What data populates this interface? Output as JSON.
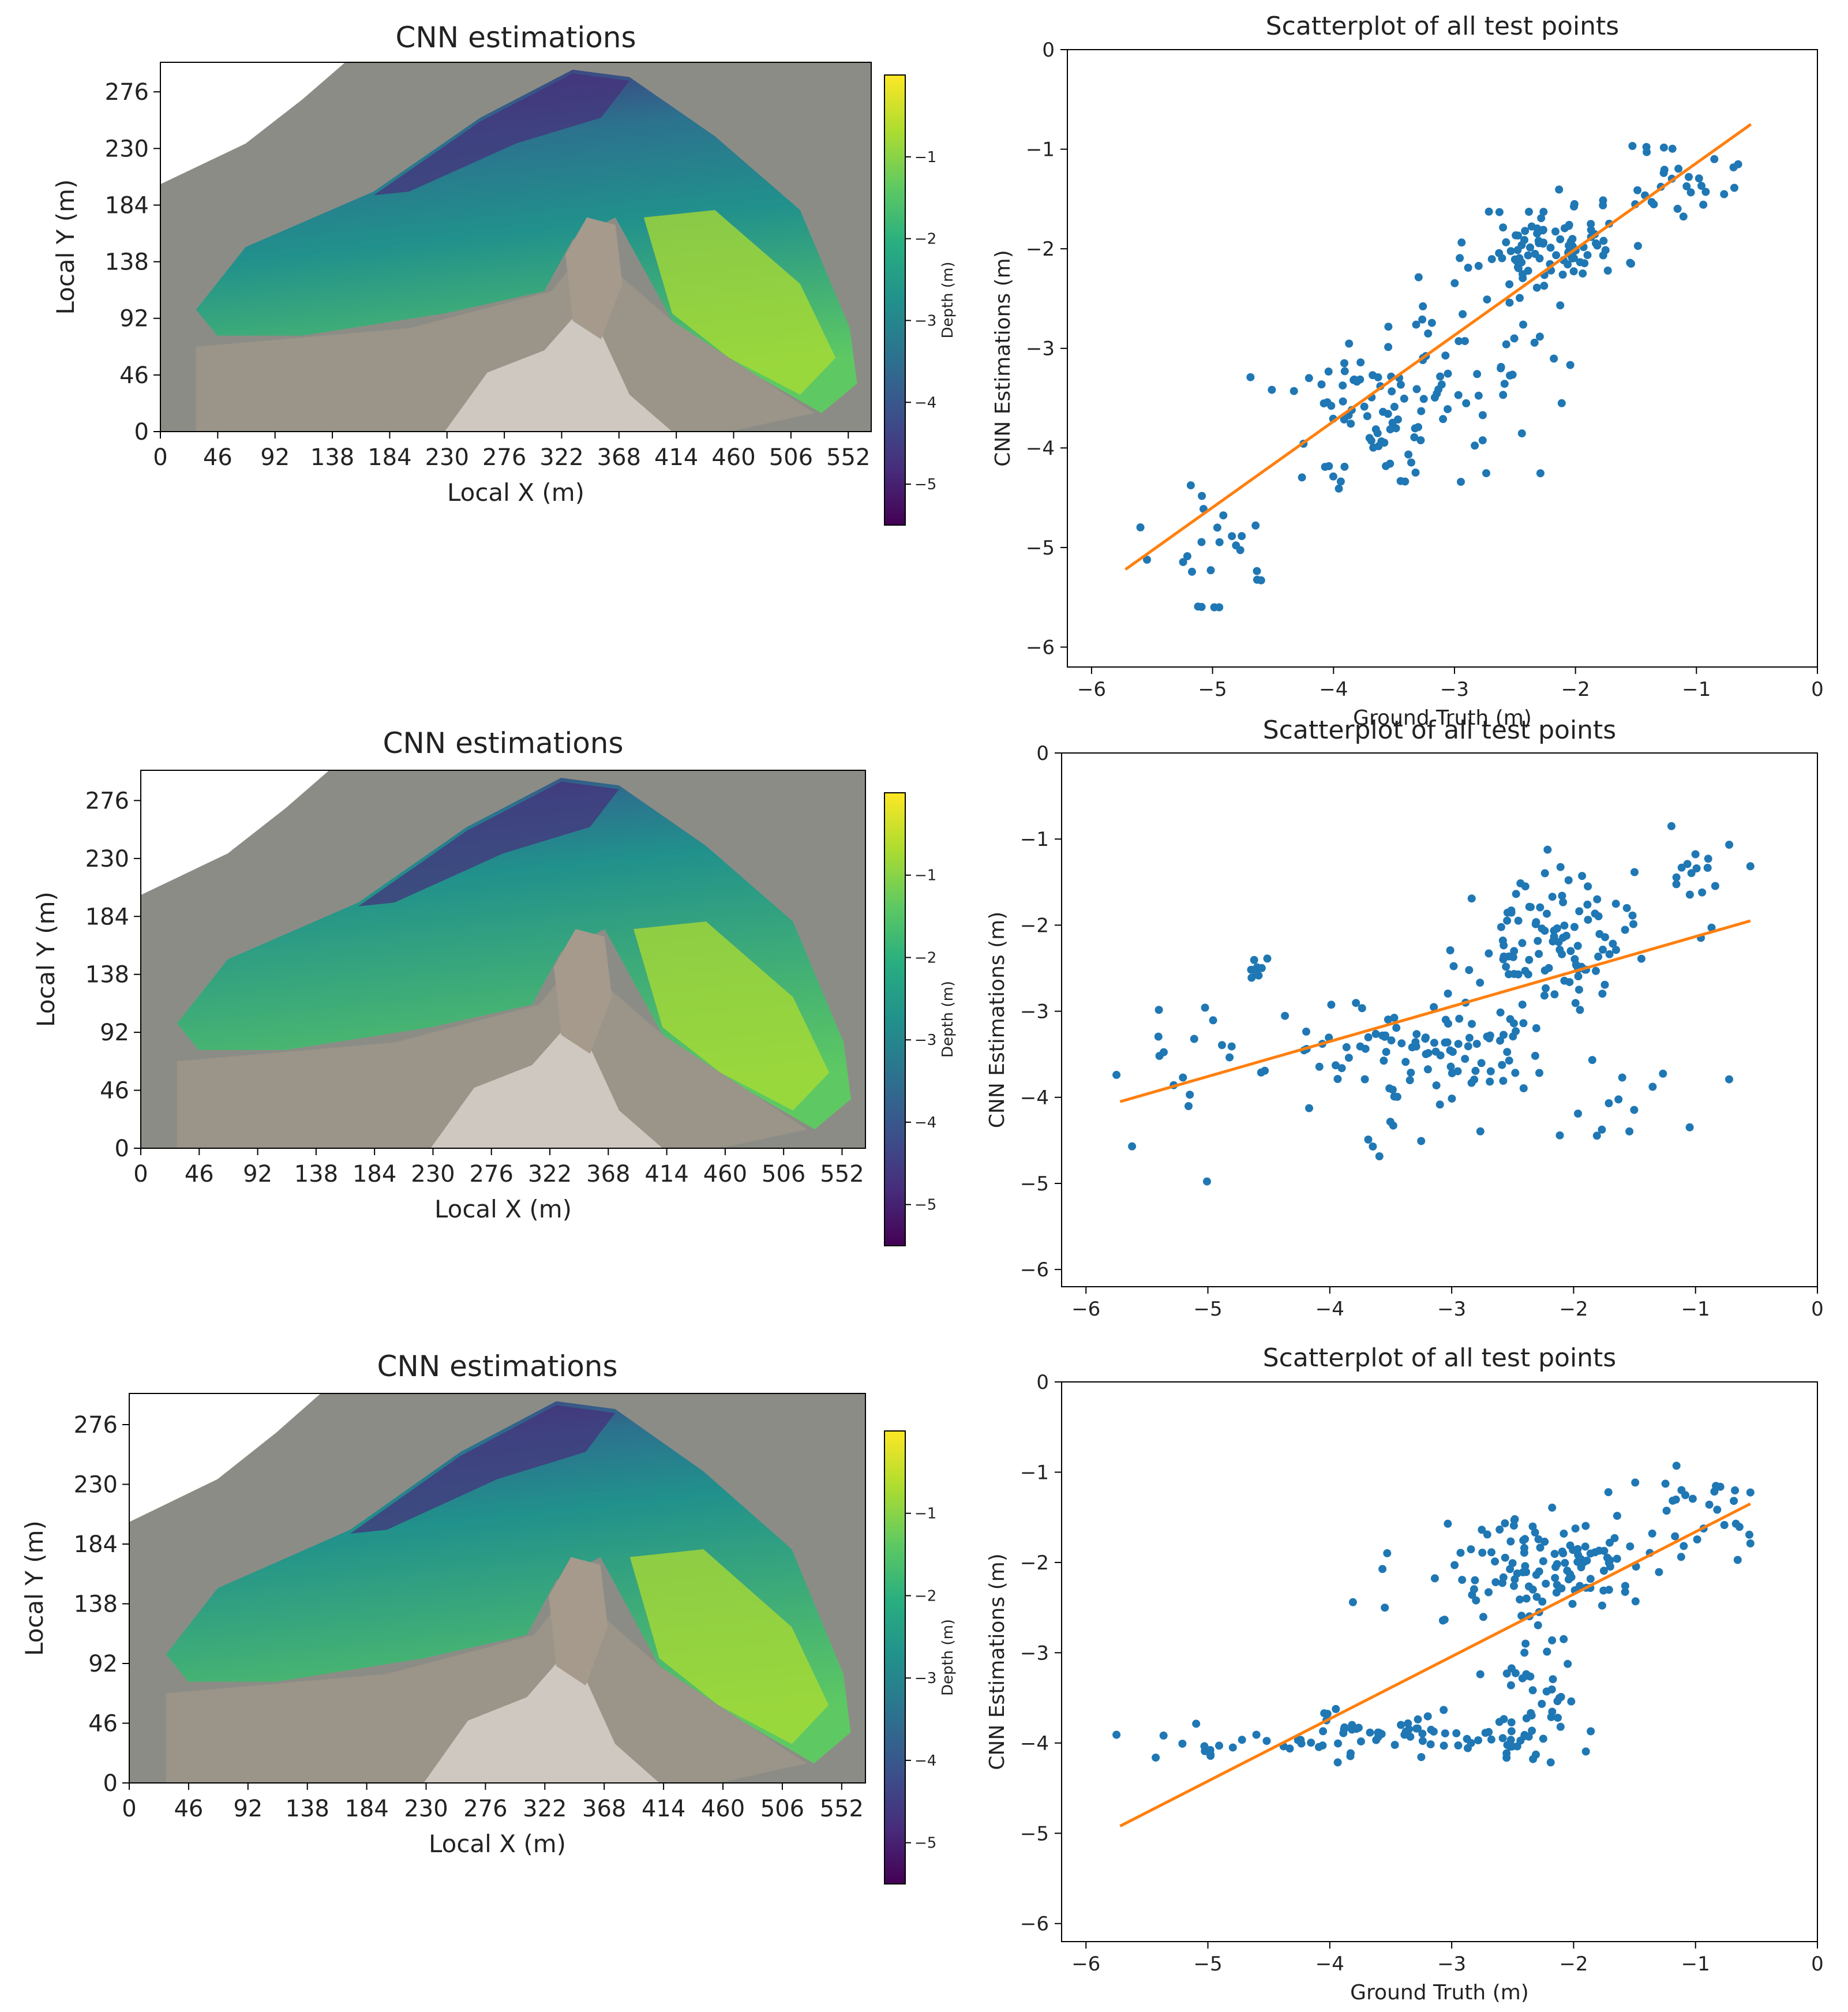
{
  "colors": {
    "point": "#1f77b4",
    "fit": "#ff7f0e",
    "land": "#8c8c86",
    "rock": "#a59a8c",
    "sand": "#ffffff",
    "viridis": [
      "#440154",
      "#472d7b",
      "#3b528b",
      "#2c728e",
      "#21918c",
      "#28ae80",
      "#5ec962",
      "#addc30",
      "#fde725"
    ]
  },
  "chart_data": [
    {
      "type": "heatmap",
      "title": "CNN estimations",
      "xlabel": "Local X (m)",
      "ylabel": "Local Y (m)",
      "xticks": [
        "0",
        "46",
        "92",
        "138",
        "184",
        "230",
        "276",
        "322",
        "368",
        "414",
        "460",
        "506",
        "552"
      ],
      "yticks": [
        "0",
        "46",
        "92",
        "138",
        "184",
        "230",
        "276"
      ],
      "xlim": [
        0,
        552
      ],
      "ylim": [
        0,
        300
      ],
      "colorbar": {
        "label": "Depth (m)",
        "ticks": [
          "-1",
          "-2",
          "-3",
          "-4",
          "-5"
        ],
        "range": [
          -5.5,
          0.0
        ]
      },
      "shallow_fraction": 0.55
    },
    {
      "type": "scatter",
      "title": "Scatterplot of all test points",
      "xlabel": "Ground Truth (m)",
      "ylabel": "CNN Estimations (m)",
      "xlim": [
        -6.2,
        0
      ],
      "ylim": [
        -6.2,
        0
      ],
      "xticks": [
        "-6",
        "-5",
        "-4",
        "-3",
        "-2",
        "-1",
        "0"
      ],
      "yticks": [
        "0",
        "-1",
        "-2",
        "-3",
        "-4",
        "-5",
        "-6"
      ],
      "fit": {
        "x": [
          -5.72,
          -0.55
        ],
        "y": [
          -5.22,
          -0.75
        ]
      },
      "clusters": [
        {
          "cx": -2.2,
          "cy": -1.95,
          "sx": 0.3,
          "sy": 0.2,
          "n": 90
        },
        {
          "cx": -1.1,
          "cy": -1.35,
          "sx": 0.3,
          "sy": 0.25,
          "n": 30
        },
        {
          "cx": -3.7,
          "cy": -3.6,
          "sx": 0.35,
          "sy": 0.35,
          "n": 60
        },
        {
          "cx": -2.9,
          "cy": -3.1,
          "sx": 0.5,
          "sy": 0.5,
          "n": 60
        },
        {
          "cx": -5.0,
          "cy": -4.9,
          "sx": 0.3,
          "sy": 0.4,
          "n": 25
        },
        {
          "cx": -3.6,
          "cy": -4.2,
          "sx": 0.3,
          "sy": 0.15,
          "n": 10
        }
      ],
      "seed": 11
    },
    {
      "type": "heatmap",
      "title": "CNN estimations",
      "xlabel": "Local X (m)",
      "ylabel": "Local Y (m)",
      "xticks": [
        "0",
        "46",
        "92",
        "138",
        "184",
        "230",
        "276",
        "322",
        "368",
        "414",
        "460",
        "506",
        "552"
      ],
      "yticks": [
        "0",
        "46",
        "92",
        "138",
        "184",
        "230",
        "276"
      ],
      "xlim": [
        0,
        552
      ],
      "ylim": [
        0,
        300
      ],
      "colorbar": {
        "label": "Depth (m)",
        "ticks": [
          "-1",
          "-2",
          "-3",
          "-4",
          "-5"
        ],
        "range": [
          -5.5,
          0.0
        ]
      },
      "shallow_fraction": 0.35
    },
    {
      "type": "scatter",
      "title": "Scatterplot of all test points",
      "xlabel": "",
      "ylabel": "CNN Estimations (m)",
      "xlim": [
        -6.2,
        0
      ],
      "ylim": [
        -6.2,
        0
      ],
      "xticks": [
        "-6",
        "-5",
        "-4",
        "-3",
        "-2",
        "-1",
        "0"
      ],
      "yticks": [
        "0",
        "-1",
        "-2",
        "-3",
        "-4",
        "-5",
        "-6"
      ],
      "fit": {
        "x": [
          -5.72,
          -0.55
        ],
        "y": [
          -4.05,
          -1.95
        ]
      },
      "clusters": [
        {
          "cx": -2.2,
          "cy": -2.2,
          "sx": 0.3,
          "sy": 0.35,
          "n": 100
        },
        {
          "cx": -3.3,
          "cy": -3.5,
          "sx": 0.6,
          "sy": 0.4,
          "n": 110
        },
        {
          "cx": -1.0,
          "cy": -1.5,
          "sx": 0.3,
          "sy": 0.4,
          "n": 20
        },
        {
          "cx": -5.3,
          "cy": -3.6,
          "sx": 0.25,
          "sy": 0.5,
          "n": 15
        },
        {
          "cx": -4.6,
          "cy": -2.5,
          "sx": 0.05,
          "sy": 0.1,
          "n": 8
        },
        {
          "cx": -1.7,
          "cy": -4.1,
          "sx": 0.4,
          "sy": 0.3,
          "n": 15
        }
      ],
      "seed": 23
    },
    {
      "type": "heatmap",
      "title": "CNN estimations",
      "xlabel": "Local X (m)",
      "ylabel": "Local Y (m)",
      "xticks": [
        "0",
        "46",
        "92",
        "138",
        "184",
        "230",
        "276",
        "322",
        "368",
        "414",
        "460",
        "506",
        "552"
      ],
      "yticks": [
        "0",
        "46",
        "92",
        "138",
        "184",
        "230",
        "276"
      ],
      "xlim": [
        0,
        552
      ],
      "ylim": [
        0,
        300
      ],
      "colorbar": {
        "label": "Depth (m)",
        "ticks": [
          "-1",
          "-2",
          "-3",
          "-4",
          "-5"
        ],
        "range": [
          -5.5,
          0.0
        ]
      },
      "shallow_fraction": 0.4
    },
    {
      "type": "scatter",
      "title": "Scatterplot of all test points",
      "xlabel": "Ground Truth (m)",
      "ylabel": "CNN Estimations (m)",
      "xlim": [
        -6.2,
        0
      ],
      "ylim": [
        -6.2,
        0
      ],
      "xticks": [
        "-6",
        "-5",
        "-4",
        "-3",
        "-2",
        "-1",
        "0"
      ],
      "yticks": [
        "0",
        "-1",
        "-2",
        "-3",
        "-4",
        "-5",
        "-6"
      ],
      "fit": {
        "x": [
          -5.72,
          -0.55
        ],
        "y": [
          -4.92,
          -1.35
        ]
      },
      "clusters": [
        {
          "cx": -2.1,
          "cy": -2.0,
          "sx": 0.35,
          "sy": 0.25,
          "n": 100
        },
        {
          "cx": -1.0,
          "cy": -1.4,
          "sx": 0.3,
          "sy": 0.3,
          "n": 30
        },
        {
          "cx": -3.8,
          "cy": -3.9,
          "sx": 0.35,
          "sy": 0.15,
          "n": 50
        },
        {
          "cx": -2.3,
          "cy": -3.4,
          "sx": 0.15,
          "sy": 0.4,
          "n": 40
        },
        {
          "cx": -5.2,
          "cy": -4.0,
          "sx": 0.3,
          "sy": 0.1,
          "n": 15
        },
        {
          "cx": -2.5,
          "cy": -3.95,
          "sx": 0.3,
          "sy": 0.1,
          "n": 25
        },
        {
          "cx": -2.9,
          "cy": -2.1,
          "sx": 0.4,
          "sy": 0.3,
          "n": 20
        }
      ],
      "seed": 37
    }
  ]
}
